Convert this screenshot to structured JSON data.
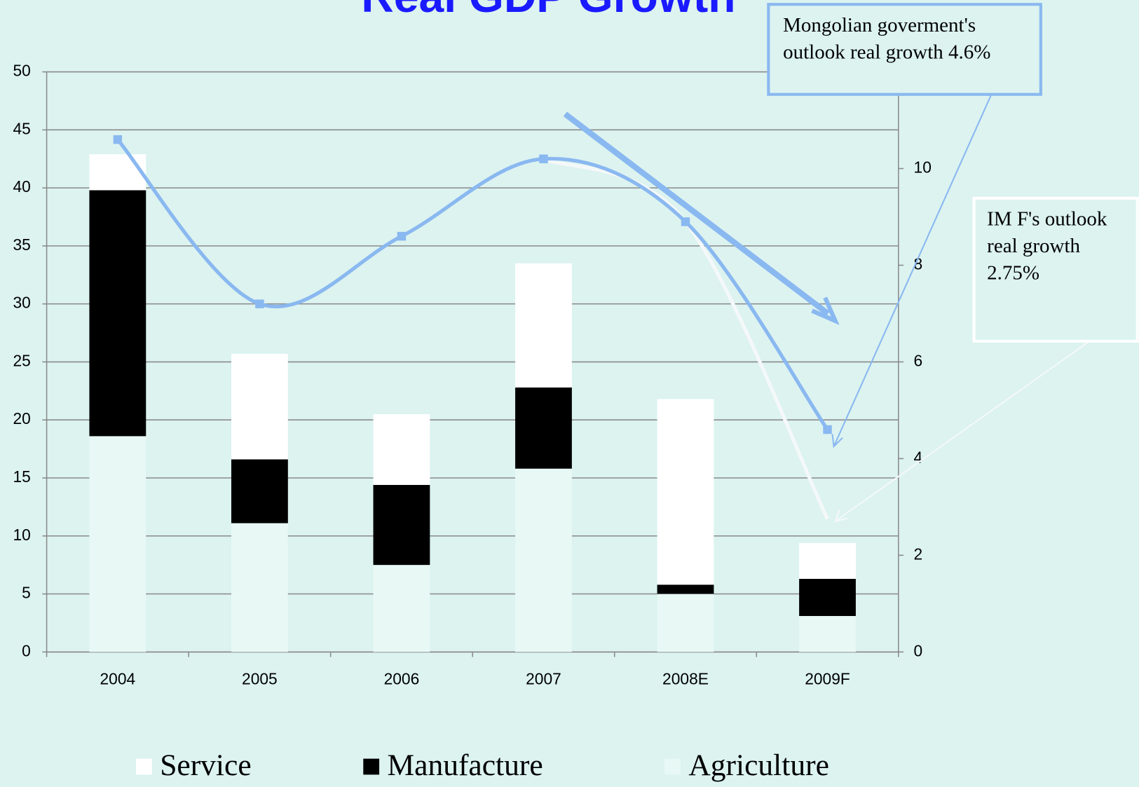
{
  "chart_data": {
    "type": "bar",
    "title": "Real GDP Growth",
    "categories": [
      "2004",
      "2005",
      "2006",
      "2007",
      "2008E",
      "2009F"
    ],
    "series": [
      {
        "name": "Agriculture",
        "color": "#e8f8f5",
        "values": [
          18.6,
          11.1,
          7.5,
          15.8,
          5.0,
          3.1
        ]
      },
      {
        "name": "Manufacture",
        "color": "#000000",
        "values": [
          21.2,
          5.5,
          6.9,
          7.0,
          0.8,
          3.2
        ]
      },
      {
        "name": "Service",
        "color": "#ffffff",
        "values": [
          3.1,
          9.1,
          6.1,
          10.7,
          16.0,
          3.1
        ]
      },
      {
        "type": "line",
        "axis": "y2",
        "color": "#8ab8f0",
        "markers": true,
        "values": [
          10.6,
          7.2,
          8.6,
          10.2,
          8.9,
          4.6
        ]
      },
      {
        "type": "line",
        "axis": "y2",
        "color": "#f4f8f8",
        "markers": false,
        "values": [
          null,
          null,
          null,
          10.2,
          8.9,
          2.75
        ]
      }
    ],
    "ylim": [
      0,
      50
    ],
    "yticks": [
      0,
      5,
      10,
      15,
      20,
      25,
      30,
      35,
      40,
      45,
      50
    ],
    "y2lim": [
      0,
      12
    ],
    "y2ticks": [
      0,
      2,
      4,
      6,
      8,
      10
    ],
    "grid": true,
    "annotations": [
      {
        "lines": [
          "Mongolian goverment's",
          "outlook real growth 4.6%"
        ]
      },
      {
        "lines": [
          "IM F's outlook",
          "real growth",
          "2.75%"
        ]
      }
    ]
  }
}
